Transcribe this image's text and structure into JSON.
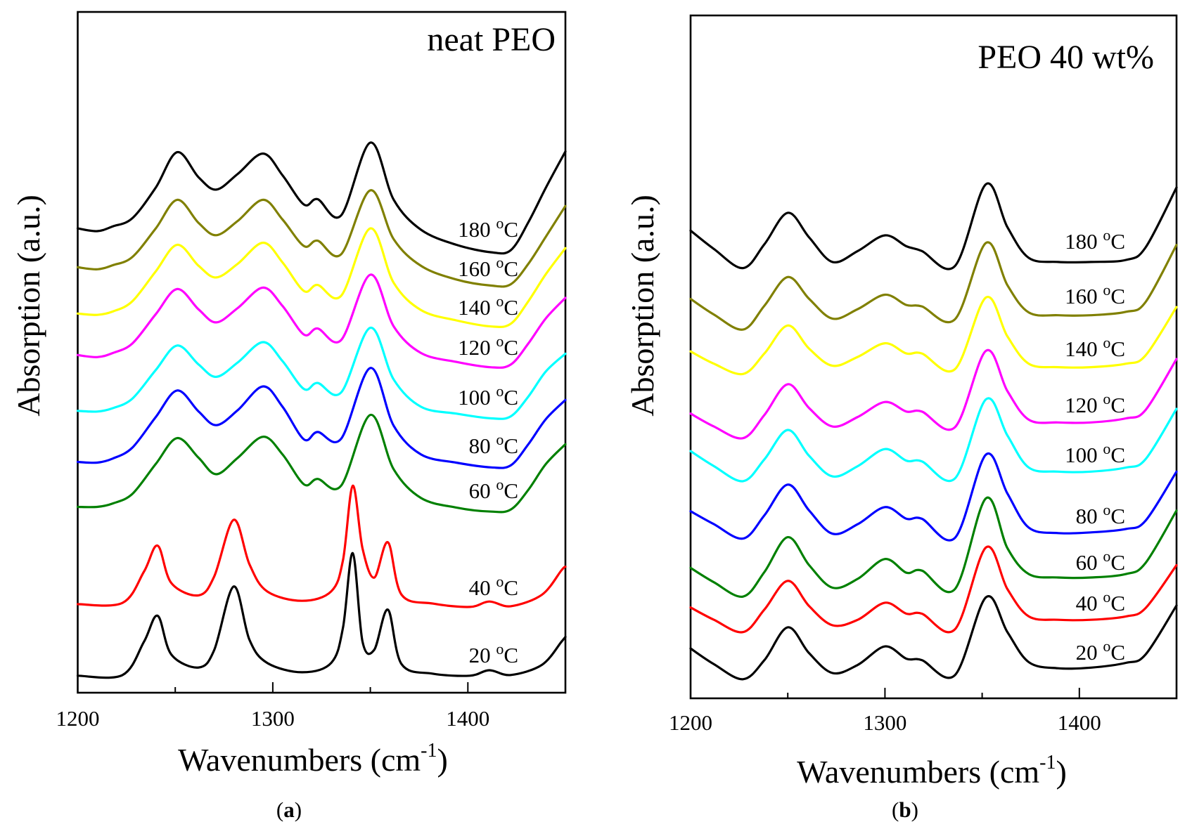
{
  "chart_data": [
    {
      "type": "line",
      "panel_label": "a",
      "title": "neat PEO",
      "xlabel": {
        "text": "Wavenumbers (cm",
        "sup": "-1",
        "close": ")"
      },
      "ylabel": "Absorption (a.u.)",
      "xlim": [
        1200,
        1450
      ],
      "ylim": [
        0,
        10
      ],
      "y_ticks_shown": false,
      "xticks": [
        1200,
        1300,
        1400
      ],
      "minor_xticks": [
        1250,
        1350
      ],
      "grid": false,
      "legend": "inline labels at right of each curve",
      "groups": [
        {
          "x": [
            1200,
            1210,
            1218,
            1228,
            1240,
            1251,
            1262,
            1271,
            1282,
            1295,
            1305,
            1316,
            1323,
            1335,
            1350,
            1362,
            1376,
            1394,
            1412,
            1422,
            1431,
            1440,
            1450
          ],
          "series": [
            {
              "name": "180 °C",
              "color": "#000000",
              "values": [
                6.82,
                6.78,
                6.85,
                6.97,
                7.42,
                7.94,
                7.57,
                7.39,
                7.62,
                7.92,
                7.6,
                7.17,
                7.25,
                7.01,
                8.08,
                7.24,
                6.8,
                6.58,
                6.47,
                6.5,
                6.91,
                7.42,
                7.95
              ]
            },
            {
              "name": "160 °C",
              "color": "#808000",
              "values": [
                6.25,
                6.22,
                6.28,
                6.4,
                6.82,
                7.24,
                6.9,
                6.72,
                6.93,
                7.24,
                6.95,
                6.56,
                6.64,
                6.44,
                7.38,
                6.66,
                6.27,
                6.07,
                5.98,
                6.0,
                6.3,
                6.7,
                7.15
              ]
            },
            {
              "name": "140 °C",
              "color": "#ffff00",
              "values": [
                5.57,
                5.55,
                5.6,
                5.75,
                6.19,
                6.58,
                6.27,
                6.1,
                6.3,
                6.61,
                6.32,
                5.9,
                5.99,
                5.83,
                6.82,
                6.02,
                5.62,
                5.47,
                5.38,
                5.42,
                5.75,
                6.15,
                6.53
              ]
            },
            {
              "name": "120 °C",
              "color": "#ff00ff",
              "values": [
                4.96,
                4.93,
                4.99,
                5.13,
                5.56,
                5.93,
                5.63,
                5.44,
                5.65,
                5.95,
                5.68,
                5.26,
                5.35,
                5.18,
                6.14,
                5.38,
                4.99,
                4.86,
                4.78,
                4.82,
                5.13,
                5.5,
                5.8
              ]
            },
            {
              "name": "100 °C",
              "color": "#00ffff",
              "values": [
                4.14,
                4.13,
                4.18,
                4.32,
                4.74,
                5.1,
                4.82,
                4.64,
                4.85,
                5.15,
                4.87,
                4.46,
                4.55,
                4.41,
                5.36,
                4.6,
                4.2,
                4.1,
                4.03,
                4.06,
                4.35,
                4.72,
                4.98
              ]
            },
            {
              "name": "80 °C",
              "color": "#0000ff",
              "values": [
                3.39,
                3.38,
                3.44,
                3.6,
                4.05,
                4.44,
                4.13,
                3.93,
                4.15,
                4.5,
                4.2,
                3.72,
                3.83,
                3.73,
                4.77,
                3.92,
                3.5,
                3.38,
                3.31,
                3.34,
                3.65,
                4.02,
                4.3
              ]
            },
            {
              "name": "60 °C",
              "color": "#008000",
              "values": [
                2.73,
                2.73,
                2.78,
                2.92,
                3.36,
                3.74,
                3.45,
                3.21,
                3.45,
                3.76,
                3.5,
                3.06,
                3.14,
                3.04,
                4.08,
                3.28,
                2.86,
                2.72,
                2.66,
                2.69,
                2.98,
                3.36,
                3.65
              ]
            }
          ]
        },
        {
          "x": [
            1200,
            1223,
            1234,
            1241,
            1248,
            1262,
            1270,
            1280,
            1288,
            1297,
            1315,
            1330,
            1336,
            1341,
            1346,
            1352,
            1359,
            1366,
            1382,
            1401,
            1411,
            1422,
            1438,
            1448,
            1450
          ],
          "series": [
            {
              "name": "40 °C",
              "color": "#ff0000",
              "values": [
                1.3,
                1.32,
                1.78,
                2.16,
                1.61,
                1.43,
                1.71,
                2.54,
                1.89,
                1.49,
                1.35,
                1.49,
                1.95,
                3.04,
                2.12,
                1.69,
                2.21,
                1.44,
                1.31,
                1.26,
                1.34,
                1.27,
                1.44,
                1.8,
                1.85
              ]
            },
            {
              "name": "20 °C",
              "color": "#000000",
              "values": [
                0.25,
                0.26,
                0.75,
                1.13,
                0.56,
                0.37,
                0.63,
                1.56,
                0.78,
                0.44,
                0.3,
                0.44,
                0.96,
                2.05,
                0.75,
                0.63,
                1.22,
                0.42,
                0.28,
                0.25,
                0.33,
                0.26,
                0.41,
                0.75,
                0.82
              ]
            }
          ]
        }
      ]
    },
    {
      "type": "line",
      "panel_label": "b",
      "title": "PEO 40 wt%",
      "xlabel": {
        "text": "Wavenumbers (cm",
        "sup": "-1",
        "close": ")"
      },
      "ylabel": "Absorption (a.u.)",
      "xlim": [
        1200,
        1450
      ],
      "ylim": [
        0,
        10
      ],
      "y_ticks_shown": false,
      "xticks": [
        1200,
        1300,
        1400
      ],
      "minor_xticks": [
        1250,
        1350
      ],
      "grid": false,
      "legend": "inline labels at right of each curve",
      "groups": [
        {
          "x": [
            1200,
            1212,
            1227,
            1238,
            1250,
            1261,
            1273,
            1286,
            1300,
            1311,
            1319,
            1336,
            1352,
            1363,
            1374,
            1389,
            1406,
            1424,
            1434,
            1450
          ],
          "series": [
            {
              "name": "180 °C",
              "color": "#000000",
              "values": [
                6.85,
                6.58,
                6.3,
                6.65,
                7.11,
                6.75,
                6.39,
                6.55,
                6.78,
                6.62,
                6.55,
                6.33,
                7.53,
                6.9,
                6.45,
                6.39,
                6.39,
                6.42,
                6.6,
                7.48
              ]
            },
            {
              "name": "160 °C",
              "color": "#808000",
              "values": [
                5.85,
                5.62,
                5.4,
                5.75,
                6.17,
                5.85,
                5.56,
                5.7,
                5.91,
                5.76,
                5.74,
                5.55,
                6.67,
                6.05,
                5.65,
                5.61,
                5.61,
                5.66,
                5.8,
                6.64
              ]
            },
            {
              "name": "140 °C",
              "color": "#ffff00",
              "values": [
                5.08,
                4.9,
                4.75,
                5.05,
                5.46,
                5.12,
                4.87,
                5.0,
                5.2,
                5.05,
                5.05,
                4.82,
                5.87,
                5.3,
                4.9,
                4.85,
                4.85,
                4.9,
                5.02,
                5.73
              ]
            },
            {
              "name": "120 °C",
              "color": "#ff00ff",
              "values": [
                4.17,
                3.98,
                3.81,
                4.15,
                4.6,
                4.25,
                3.98,
                4.12,
                4.34,
                4.2,
                4.2,
                3.97,
                5.09,
                4.5,
                4.08,
                4.04,
                4.04,
                4.1,
                4.22,
                4.97
              ]
            },
            {
              "name": "100 °C",
              "color": "#00ffff",
              "values": [
                3.62,
                3.4,
                3.18,
                3.5,
                3.93,
                3.55,
                3.25,
                3.4,
                3.65,
                3.48,
                3.47,
                3.22,
                4.38,
                3.85,
                3.38,
                3.32,
                3.32,
                3.38,
                3.5,
                4.24
              ]
            },
            {
              "name": "80 °C",
              "color": "#0000ff",
              "values": [
                2.74,
                2.55,
                2.34,
                2.68,
                3.13,
                2.75,
                2.41,
                2.55,
                2.8,
                2.63,
                2.63,
                2.35,
                3.57,
                3.0,
                2.5,
                2.42,
                2.43,
                2.48,
                2.6,
                3.32
              ]
            },
            {
              "name": "60 °C",
              "color": "#008000",
              "values": [
                1.91,
                1.7,
                1.49,
                1.85,
                2.36,
                1.95,
                1.62,
                1.75,
                2.04,
                1.84,
                1.87,
                1.6,
                2.93,
                2.2,
                1.82,
                1.77,
                1.77,
                1.82,
                1.98,
                2.75
              ]
            },
            {
              "name": "40 °C",
              "color": "#ff0000",
              "values": [
                1.33,
                1.15,
                0.97,
                1.3,
                1.72,
                1.35,
                1.07,
                1.15,
                1.4,
                1.24,
                1.24,
                1.01,
                2.21,
                1.6,
                1.2,
                1.15,
                1.15,
                1.2,
                1.32,
                1.95
              ]
            },
            {
              "name": "20 °C",
              "color": "#000000",
              "values": [
                0.73,
                0.5,
                0.28,
                0.56,
                1.04,
                0.66,
                0.37,
                0.49,
                0.76,
                0.58,
                0.56,
                0.34,
                1.48,
                0.97,
                0.53,
                0.44,
                0.45,
                0.52,
                0.64,
                1.36
              ]
            }
          ]
        }
      ]
    }
  ]
}
